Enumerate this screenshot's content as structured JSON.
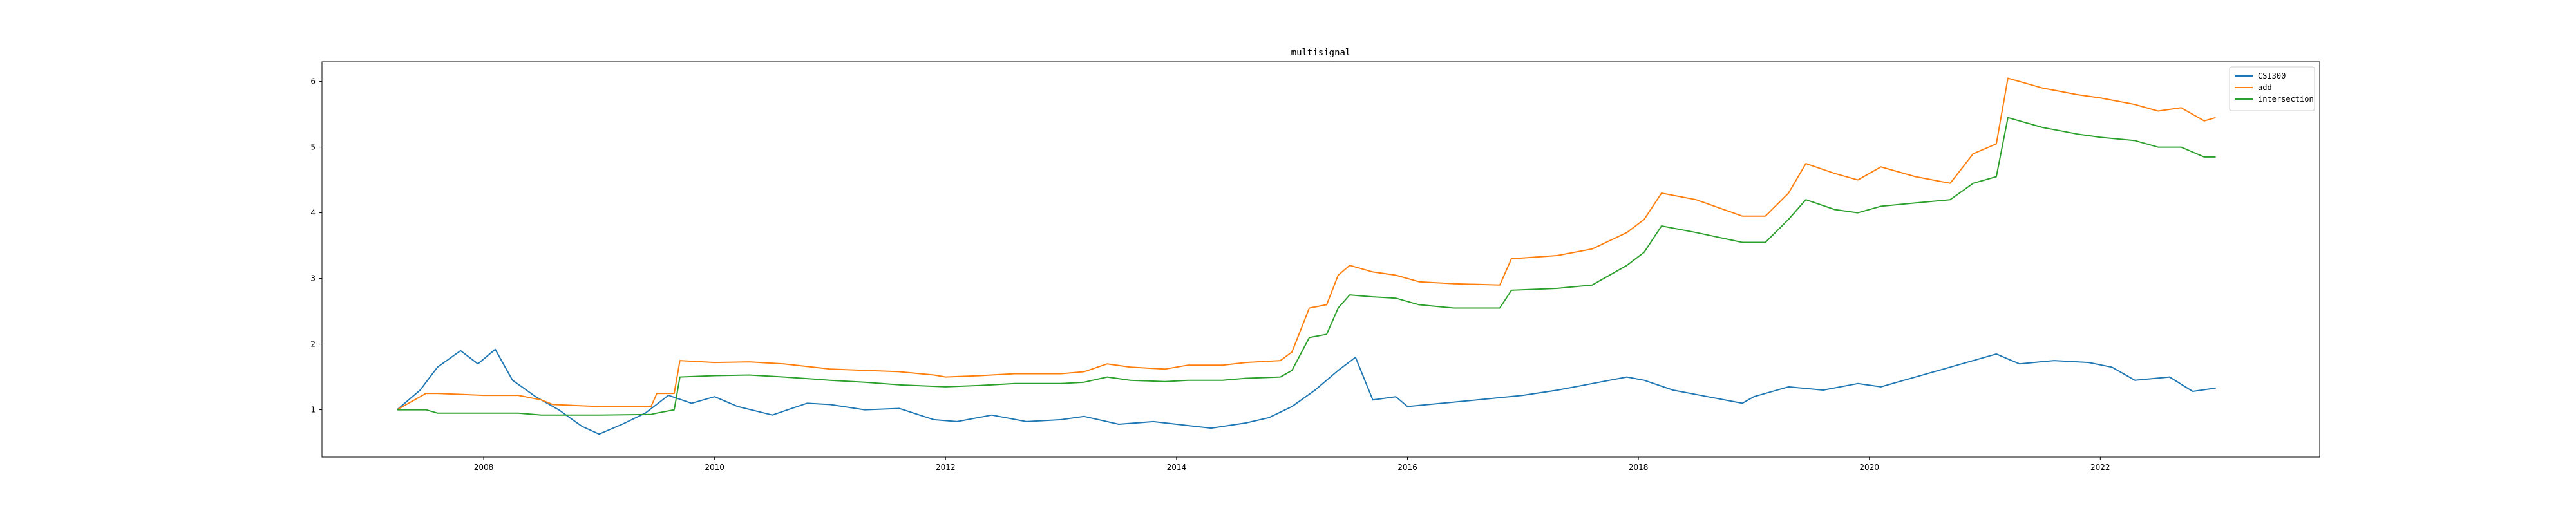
{
  "chart_data": {
    "type": "line",
    "title": "multisignal",
    "xlabel": "",
    "ylabel": "",
    "x_ticks": [
      "2008",
      "2010",
      "2012",
      "2014",
      "2016",
      "2018",
      "2020",
      "2022"
    ],
    "y_ticks": [
      "1",
      "2",
      "3",
      "4",
      "5",
      "6"
    ],
    "xlim": [
      2006.6,
      2023.9
    ],
    "ylim": [
      0.28,
      6.3
    ],
    "grid": false,
    "legend_position": "top-right",
    "series": [
      {
        "name": "CSI300",
        "color": "#1f77b4",
        "x": [
          2007.25,
          2007.45,
          2007.6,
          2007.8,
          2007.95,
          2008.1,
          2008.25,
          2008.45,
          2008.65,
          2008.85,
          2009.0,
          2009.2,
          2009.4,
          2009.6,
          2009.8,
          2010.0,
          2010.2,
          2010.5,
          2010.8,
          2011.0,
          2011.3,
          2011.6,
          2011.9,
          2012.1,
          2012.4,
          2012.7,
          2013.0,
          2013.2,
          2013.5,
          2013.8,
          2014.0,
          2014.3,
          2014.6,
          2014.8,
          2015.0,
          2015.2,
          2015.4,
          2015.55,
          2015.7,
          2015.9,
          2016.0,
          2016.3,
          2016.6,
          2017.0,
          2017.3,
          2017.6,
          2017.9,
          2018.05,
          2018.3,
          2018.6,
          2018.9,
          2019.0,
          2019.3,
          2019.6,
          2019.9,
          2020.1,
          2020.3,
          2020.6,
          2020.9,
          2021.1,
          2021.3,
          2021.6,
          2021.9,
          2022.1,
          2022.3,
          2022.6,
          2022.8,
          2023.0
        ],
        "y": [
          1.0,
          1.3,
          1.65,
          1.9,
          1.7,
          1.92,
          1.45,
          1.2,
          1.0,
          0.75,
          0.63,
          0.78,
          0.95,
          1.22,
          1.1,
          1.2,
          1.05,
          0.92,
          1.1,
          1.08,
          1.0,
          1.02,
          0.85,
          0.82,
          0.92,
          0.82,
          0.85,
          0.9,
          0.78,
          0.82,
          0.78,
          0.72,
          0.8,
          0.88,
          1.05,
          1.3,
          1.6,
          1.8,
          1.15,
          1.2,
          1.05,
          1.1,
          1.15,
          1.22,
          1.3,
          1.4,
          1.5,
          1.45,
          1.3,
          1.2,
          1.1,
          1.2,
          1.35,
          1.3,
          1.4,
          1.35,
          1.45,
          1.6,
          1.75,
          1.85,
          1.7,
          1.75,
          1.72,
          1.65,
          1.45,
          1.5,
          1.28,
          1.33
        ]
      },
      {
        "name": "add",
        "color": "#ff7f0e",
        "x": [
          2007.25,
          2007.5,
          2007.6,
          2008.0,
          2008.3,
          2008.5,
          2008.6,
          2009.0,
          2009.45,
          2009.5,
          2009.65,
          2009.7,
          2010.0,
          2010.3,
          2010.6,
          2011.0,
          2011.3,
          2011.6,
          2011.9,
          2012.0,
          2012.3,
          2012.6,
          2013.0,
          2013.2,
          2013.4,
          2013.6,
          2013.9,
          2014.1,
          2014.4,
          2014.6,
          2014.9,
          2015.0,
          2015.15,
          2015.3,
          2015.4,
          2015.5,
          2015.7,
          2015.9,
          2016.1,
          2016.4,
          2016.8,
          2016.9,
          2017.3,
          2017.6,
          2017.9,
          2018.05,
          2018.2,
          2018.5,
          2018.9,
          2019.1,
          2019.3,
          2019.45,
          2019.7,
          2019.9,
          2020.1,
          2020.4,
          2020.7,
          2020.9,
          2021.1,
          2021.2,
          2021.5,
          2021.8,
          2022.0,
          2022.3,
          2022.5,
          2022.7,
          2022.9,
          2023.0
        ],
        "y": [
          1.0,
          1.25,
          1.25,
          1.22,
          1.22,
          1.15,
          1.08,
          1.05,
          1.05,
          1.25,
          1.25,
          1.75,
          1.72,
          1.73,
          1.7,
          1.62,
          1.6,
          1.58,
          1.53,
          1.5,
          1.52,
          1.55,
          1.55,
          1.58,
          1.7,
          1.65,
          1.62,
          1.68,
          1.68,
          1.72,
          1.75,
          1.88,
          2.55,
          2.6,
          3.05,
          3.2,
          3.1,
          3.05,
          2.95,
          2.92,
          2.9,
          3.3,
          3.35,
          3.45,
          3.7,
          3.9,
          4.3,
          4.2,
          3.95,
          3.95,
          4.3,
          4.75,
          4.6,
          4.5,
          4.7,
          4.55,
          4.45,
          4.9,
          5.05,
          6.05,
          5.9,
          5.8,
          5.75,
          5.65,
          5.55,
          5.6,
          5.4,
          5.45
        ]
      },
      {
        "name": "intersection",
        "color": "#2ca02c",
        "x": [
          2007.25,
          2007.5,
          2007.6,
          2008.0,
          2008.3,
          2008.5,
          2008.7,
          2009.0,
          2009.45,
          2009.5,
          2009.65,
          2009.7,
          2010.0,
          2010.3,
          2010.6,
          2011.0,
          2011.3,
          2011.6,
          2012.0,
          2012.3,
          2012.6,
          2013.0,
          2013.2,
          2013.4,
          2013.6,
          2013.9,
          2014.1,
          2014.4,
          2014.6,
          2014.9,
          2015.0,
          2015.15,
          2015.3,
          2015.4,
          2015.5,
          2015.7,
          2015.9,
          2016.1,
          2016.4,
          2016.8,
          2016.9,
          2017.3,
          2017.6,
          2017.9,
          2018.05,
          2018.2,
          2018.5,
          2018.9,
          2019.1,
          2019.3,
          2019.45,
          2019.7,
          2019.9,
          2020.1,
          2020.4,
          2020.7,
          2020.9,
          2021.1,
          2021.2,
          2021.5,
          2021.8,
          2022.0,
          2022.3,
          2022.5,
          2022.7,
          2022.9,
          2023.0
        ],
        "y": [
          1.0,
          1.0,
          0.95,
          0.95,
          0.95,
          0.92,
          0.92,
          0.92,
          0.93,
          0.95,
          1.0,
          1.5,
          1.52,
          1.53,
          1.5,
          1.45,
          1.42,
          1.38,
          1.35,
          1.37,
          1.4,
          1.4,
          1.42,
          1.5,
          1.45,
          1.43,
          1.45,
          1.45,
          1.48,
          1.5,
          1.6,
          2.1,
          2.15,
          2.55,
          2.75,
          2.72,
          2.7,
          2.6,
          2.55,
          2.55,
          2.82,
          2.85,
          2.9,
          3.2,
          3.4,
          3.8,
          3.7,
          3.55,
          3.55,
          3.9,
          4.2,
          4.05,
          4.0,
          4.1,
          4.15,
          4.2,
          4.45,
          4.55,
          5.45,
          5.3,
          5.2,
          5.15,
          5.1,
          5.0,
          5.0,
          4.85,
          4.85
        ]
      }
    ]
  }
}
